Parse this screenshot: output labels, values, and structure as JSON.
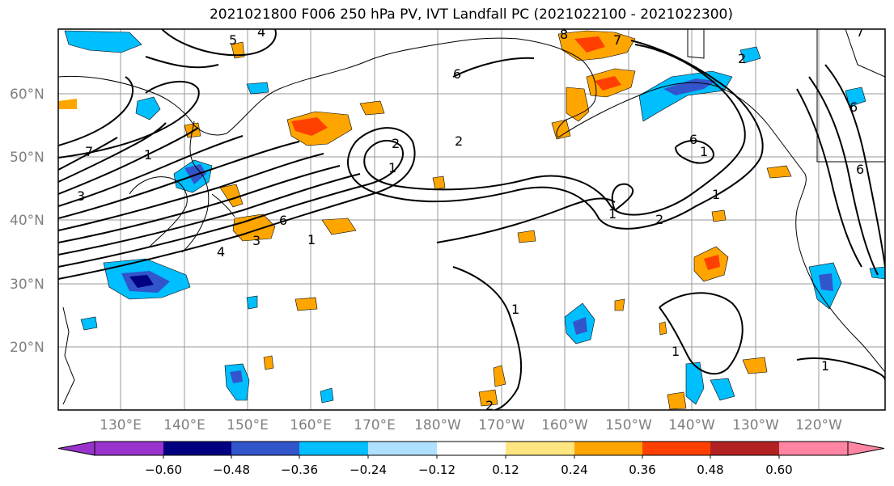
{
  "title": "2021021800 F006 250 hPa PV, IVT Landfall PC (2021022100 - 2021022300)",
  "map": {
    "lat_labels": [
      "60°N",
      "50°N",
      "40°N",
      "30°N",
      "20°N"
    ],
    "lon_labels": [
      "130°E",
      "140°E",
      "150°E",
      "160°E",
      "170°E",
      "180°W",
      "170°W",
      "160°W",
      "150°W",
      "140°W",
      "130°W",
      "120°W"
    ],
    "contour_labels": [
      "5",
      "4",
      "8",
      "7",
      "2",
      "6",
      "7",
      "3",
      "2",
      "1",
      "7",
      "6",
      "2",
      "1",
      "6",
      "1",
      "4",
      "3",
      "1",
      "6",
      "2",
      "1",
      "1",
      "1",
      "2",
      "1",
      "6",
      "1"
    ]
  },
  "colorbar": {
    "ticks": [
      "−0.60",
      "−0.48",
      "−0.36",
      "−0.24",
      "−0.12",
      "0.12",
      "0.24",
      "0.36",
      "0.48",
      "0.60"
    ],
    "colors": [
      "#9933cc",
      "#000080",
      "#3355cc",
      "#00bfff",
      "#b0e0ff",
      "#ffffff",
      "#ffe680",
      "#ffa500",
      "#ff4000",
      "#b22222",
      "#ff85a2"
    ]
  }
}
